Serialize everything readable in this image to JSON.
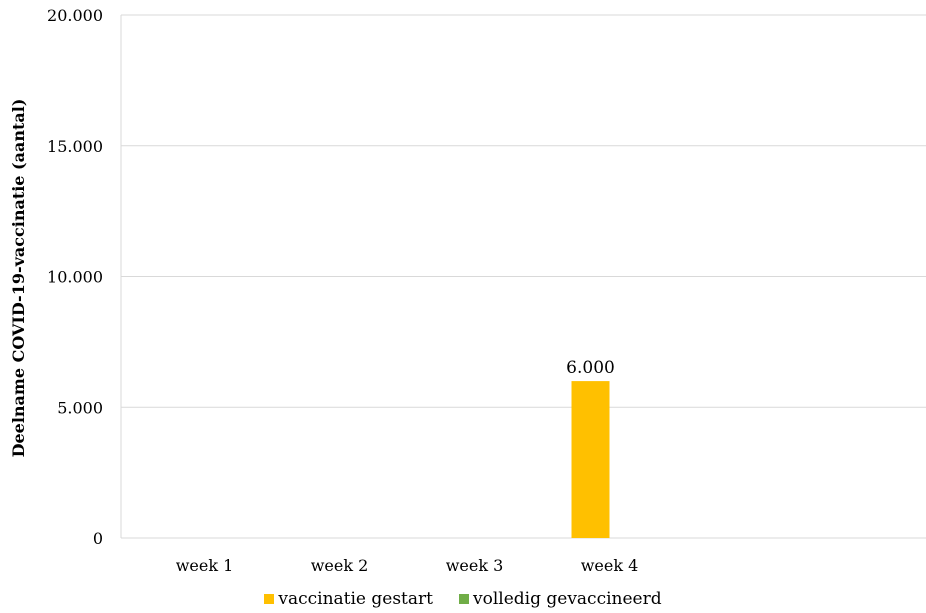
{
  "chart_data": {
    "type": "bar",
    "categories": [
      "week 1",
      "week 2",
      "week 3",
      "week 4"
    ],
    "series": [
      {
        "name": "vaccinatie gestart",
        "color": "#FFC000",
        "values": [
          0,
          0,
          0,
          6000
        ]
      },
      {
        "name": "volledig gevaccineerd",
        "color": "#70AD47",
        "values": [
          0,
          0,
          0,
          0
        ]
      }
    ],
    "data_labels": [
      {
        "category": "week 4",
        "series": "vaccinatie gestart",
        "text": "6.000"
      }
    ],
    "ylabel": "Deelname COVID-19-vaccinatie  (aantal)",
    "xlabel": "",
    "ylim": [
      0,
      20000
    ],
    "yticks": [
      {
        "value": 0,
        "label": "0"
      },
      {
        "value": 5000,
        "label": "5.000"
      },
      {
        "value": 10000,
        "label": "10.000"
      },
      {
        "value": 15000,
        "label": "15.000"
      },
      {
        "value": 20000,
        "label": "20.000"
      }
    ],
    "grid": true,
    "legend_position": "bottom",
    "gridline_color": "#D9D9D9"
  }
}
